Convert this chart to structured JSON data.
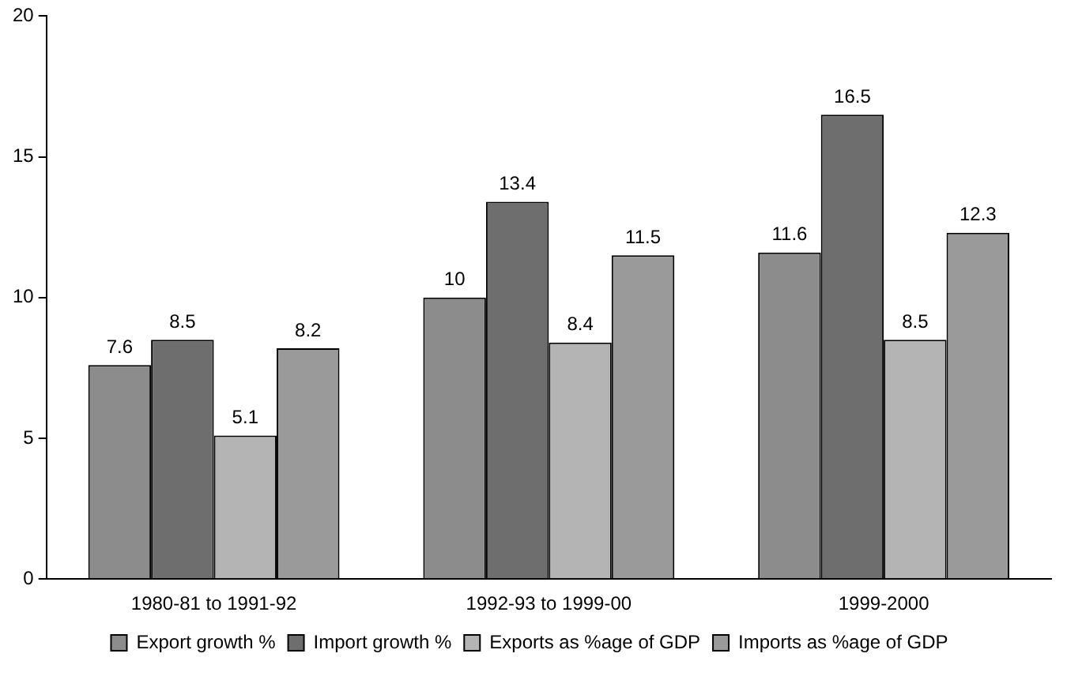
{
  "chart_data": {
    "type": "bar",
    "categories": [
      "1980-81 to 1991-92",
      "1992-93 to 1999-00",
      "1999-2000"
    ],
    "series": [
      {
        "name": "Export growth %",
        "color": "#8c8c8c",
        "values": [
          7.6,
          10,
          11.6
        ]
      },
      {
        "name": "Import growth %",
        "color": "#6e6e6e",
        "values": [
          8.5,
          13.4,
          16.5
        ]
      },
      {
        "name": "Exports as %age of GDP",
        "color": "#b4b4b4",
        "values": [
          5.1,
          8.4,
          8.5
        ]
      },
      {
        "name": "Imports as %age of GDP",
        "color": "#9a9a9a",
        "values": [
          8.2,
          11.5,
          12.3
        ]
      }
    ],
    "ylim": [
      0,
      20
    ],
    "yticks": [
      0,
      5,
      10,
      15,
      20
    ],
    "grid": false,
    "legend": "bottom",
    "data_labels": true
  }
}
